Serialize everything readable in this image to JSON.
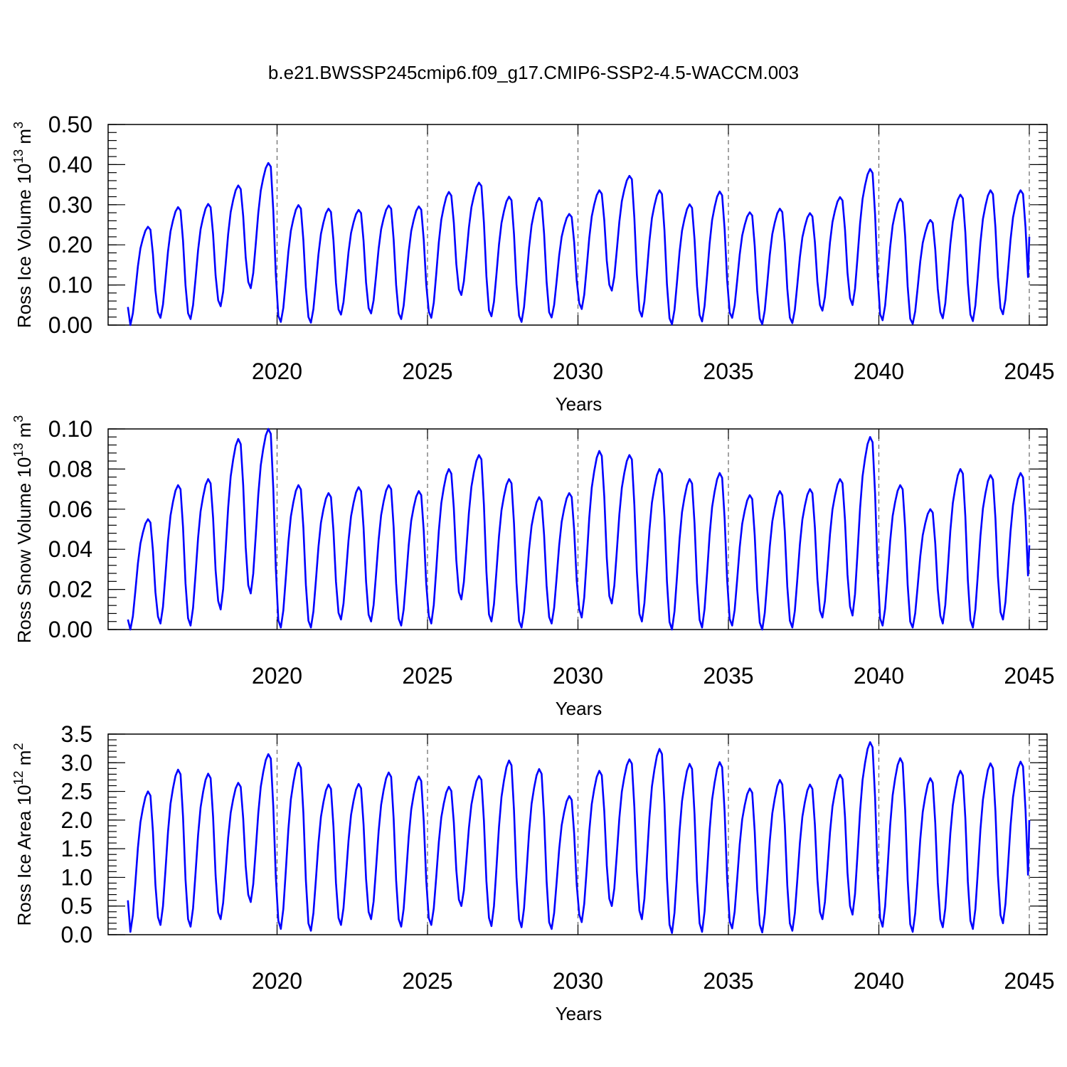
{
  "title": "b.e21.BWSSP245cmip6.f09_g17.CMIP6-SSP2-4.5-WACCM.003",
  "chart_data": [
    {
      "type": "line",
      "name": "ice-volume",
      "ylabel_main": "Ross Ice Volume 10",
      "ylabel_exp": "13",
      "ylabel_unit": " m",
      "ylabel_unit_exp": "3",
      "xlabel": "Years",
      "xlim": [
        2015,
        2045
      ],
      "ylim": [
        0,
        0.5
      ],
      "yticks": [
        "0.00",
        "0.10",
        "0.20",
        "0.30",
        "0.40",
        "0.50"
      ],
      "xticks": [
        "2020",
        "2025",
        "2030",
        "2035",
        "2040",
        "2045"
      ],
      "yminor_step": 0.02,
      "ydecimals": 2,
      "annual_max": [
        0.245,
        0.294,
        0.302,
        0.348,
        0.404,
        0.299,
        0.29,
        0.287,
        0.298,
        0.296,
        0.332,
        0.355,
        0.32,
        0.317,
        0.277,
        0.336,
        0.372,
        0.336,
        0.301,
        0.333,
        0.281,
        0.29,
        0.279,
        0.319,
        0.389,
        0.315,
        0.262,
        0.325,
        0.336,
        0.336
      ],
      "annual_min": [
        0.0,
        0.018,
        0.015,
        0.047,
        0.092,
        0.008,
        0.006,
        0.026,
        0.029,
        0.015,
        0.018,
        0.075,
        0.022,
        0.008,
        0.019,
        0.04,
        0.086,
        0.021,
        0.002,
        0.009,
        0.018,
        0.002,
        0.005,
        0.036,
        0.05,
        0.012,
        0.003,
        0.017,
        0.01,
        0.027
      ],
      "start_value": 0.045,
      "end_value": 0.22
    },
    {
      "type": "line",
      "name": "snow-volume",
      "ylabel_main": "Ross Snow Volume 10",
      "ylabel_exp": "13",
      "ylabel_unit": " m",
      "ylabel_unit_exp": "3",
      "xlabel": "Years",
      "xlim": [
        2015,
        2045
      ],
      "ylim": [
        0,
        0.1
      ],
      "yticks": [
        "0.00",
        "0.02",
        "0.04",
        "0.06",
        "0.08",
        "0.10"
      ],
      "xticks": [
        "2020",
        "2025",
        "2030",
        "2035",
        "2040",
        "2045"
      ],
      "yminor_step": 0.004,
      "ydecimals": 2,
      "annual_max": [
        0.055,
        0.072,
        0.075,
        0.095,
        0.1,
        0.072,
        0.068,
        0.071,
        0.072,
        0.069,
        0.08,
        0.087,
        0.075,
        0.066,
        0.068,
        0.089,
        0.087,
        0.08,
        0.075,
        0.078,
        0.067,
        0.069,
        0.07,
        0.075,
        0.096,
        0.072,
        0.06,
        0.08,
        0.077,
        0.078
      ],
      "annual_min": [
        0.0,
        0.003,
        0.002,
        0.01,
        0.018,
        0.001,
        0.001,
        0.005,
        0.004,
        0.002,
        0.003,
        0.015,
        0.004,
        0.001,
        0.003,
        0.006,
        0.013,
        0.004,
        0.0,
        0.001,
        0.002,
        0.0,
        0.001,
        0.006,
        0.007,
        0.002,
        0.001,
        0.003,
        0.001,
        0.005
      ],
      "start_value": 0.005,
      "end_value": 0.042
    },
    {
      "type": "line",
      "name": "ice-area",
      "ylabel_main": "Ross Ice Area 10",
      "ylabel_exp": "12",
      "ylabel_unit": " m",
      "ylabel_unit_exp": "2",
      "xlabel": "Years",
      "xlim": [
        2015,
        2045
      ],
      "ylim": [
        0,
        3.5
      ],
      "yticks": [
        "0.0",
        "0.5",
        "1.0",
        "1.5",
        "2.0",
        "2.5",
        "3.0",
        "3.5"
      ],
      "xticks": [
        "2020",
        "2025",
        "2030",
        "2035",
        "2040",
        "2045"
      ],
      "yminor_step": 0.1,
      "ydecimals": 1,
      "annual_max": [
        2.5,
        2.88,
        2.81,
        2.65,
        3.15,
        3.0,
        2.62,
        2.63,
        2.83,
        2.76,
        2.58,
        2.77,
        3.04,
        2.89,
        2.42,
        2.86,
        3.06,
        3.24,
        2.98,
        3.01,
        2.55,
        2.7,
        2.62,
        2.79,
        3.36,
        3.08,
        2.73,
        2.86,
        2.99,
        3.02
      ],
      "annual_min": [
        0.05,
        0.17,
        0.14,
        0.27,
        0.57,
        0.1,
        0.07,
        0.17,
        0.27,
        0.14,
        0.17,
        0.5,
        0.15,
        0.13,
        0.1,
        0.22,
        0.5,
        0.27,
        0.03,
        0.05,
        0.11,
        0.04,
        0.07,
        0.27,
        0.35,
        0.14,
        0.05,
        0.13,
        0.1,
        0.2
      ],
      "start_value": 0.6,
      "end_value": 2.0
    }
  ]
}
